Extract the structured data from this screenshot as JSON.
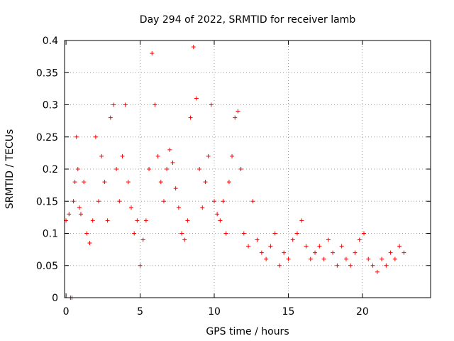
{
  "chart_data": {
    "type": "scatter",
    "title": "Day 294 of 2022, SRMTID for receiver lamb",
    "xlabel": "GPS time / hours",
    "ylabel": "SRMTID / TECUs",
    "xlim": [
      -0.1,
      24.6
    ],
    "ylim": [
      0,
      0.4
    ],
    "x_ticks": [
      0,
      5,
      10,
      15,
      20
    ],
    "x_tick_labels": [
      "0",
      "5",
      "10",
      "15",
      "20"
    ],
    "y_ticks": [
      0,
      0.05,
      0.1,
      0.15,
      0.2,
      0.25,
      0.3,
      0.35,
      0.4
    ],
    "y_tick_labels": [
      "0",
      "0.05",
      "0.1",
      "0.15",
      "0.2",
      "0.25",
      "0.3",
      "0.35",
      "0.4"
    ],
    "grid": true,
    "marker": "plus",
    "marker_color": "#ff0000",
    "series": [
      {
        "name": "SRMTID",
        "x": [
          0.0,
          0.2,
          0.3,
          0.4,
          0.5,
          0.6,
          0.7,
          0.8,
          0.9,
          1.0,
          1.2,
          1.4,
          1.6,
          1.8,
          2.0,
          2.2,
          2.4,
          2.6,
          2.8,
          3.0,
          3.2,
          3.4,
          3.6,
          3.8,
          4.0,
          4.2,
          4.4,
          4.6,
          4.8,
          5.0,
          5.2,
          5.4,
          5.6,
          5.8,
          6.0,
          6.2,
          6.4,
          6.6,
          6.8,
          7.0,
          7.2,
          7.4,
          7.6,
          7.8,
          8.0,
          8.2,
          8.4,
          8.6,
          8.8,
          9.0,
          9.2,
          9.4,
          9.6,
          9.8,
          10.0,
          10.2,
          10.4,
          10.6,
          10.8,
          11.0,
          11.2,
          11.4,
          11.6,
          11.8,
          12.0,
          12.3,
          12.6,
          12.9,
          13.2,
          13.5,
          13.8,
          14.1,
          14.4,
          14.7,
          15.0,
          15.3,
          15.6,
          15.9,
          16.2,
          16.5,
          16.8,
          17.1,
          17.4,
          17.7,
          18.0,
          18.3,
          18.6,
          18.9,
          19.2,
          19.5,
          19.8,
          20.1,
          20.4,
          20.7,
          21.0,
          21.3,
          21.6,
          21.9,
          22.2,
          22.5,
          22.8
        ],
        "y": [
          0.12,
          0.13,
          0.0,
          0.0,
          0.15,
          0.18,
          0.25,
          0.2,
          0.14,
          0.13,
          0.18,
          0.1,
          0.085,
          0.12,
          0.25,
          0.15,
          0.22,
          0.18,
          0.12,
          0.28,
          0.3,
          0.2,
          0.15,
          0.22,
          0.3,
          0.18,
          0.14,
          0.1,
          0.12,
          0.05,
          0.09,
          0.12,
          0.2,
          0.38,
          0.3,
          0.22,
          0.18,
          0.15,
          0.2,
          0.23,
          0.21,
          0.17,
          0.14,
          0.1,
          0.09,
          0.12,
          0.28,
          0.39,
          0.31,
          0.2,
          0.14,
          0.18,
          0.22,
          0.3,
          0.15,
          0.13,
          0.12,
          0.15,
          0.1,
          0.18,
          0.22,
          0.28,
          0.29,
          0.2,
          0.1,
          0.08,
          0.15,
          0.09,
          0.07,
          0.06,
          0.08,
          0.1,
          0.05,
          0.07,
          0.06,
          0.09,
          0.1,
          0.12,
          0.08,
          0.06,
          0.07,
          0.08,
          0.06,
          0.09,
          0.07,
          0.05,
          0.08,
          0.06,
          0.05,
          0.07,
          0.09,
          0.1,
          0.06,
          0.05,
          0.04,
          0.06,
          0.05,
          0.07,
          0.06,
          0.08,
          0.07
        ]
      }
    ]
  }
}
